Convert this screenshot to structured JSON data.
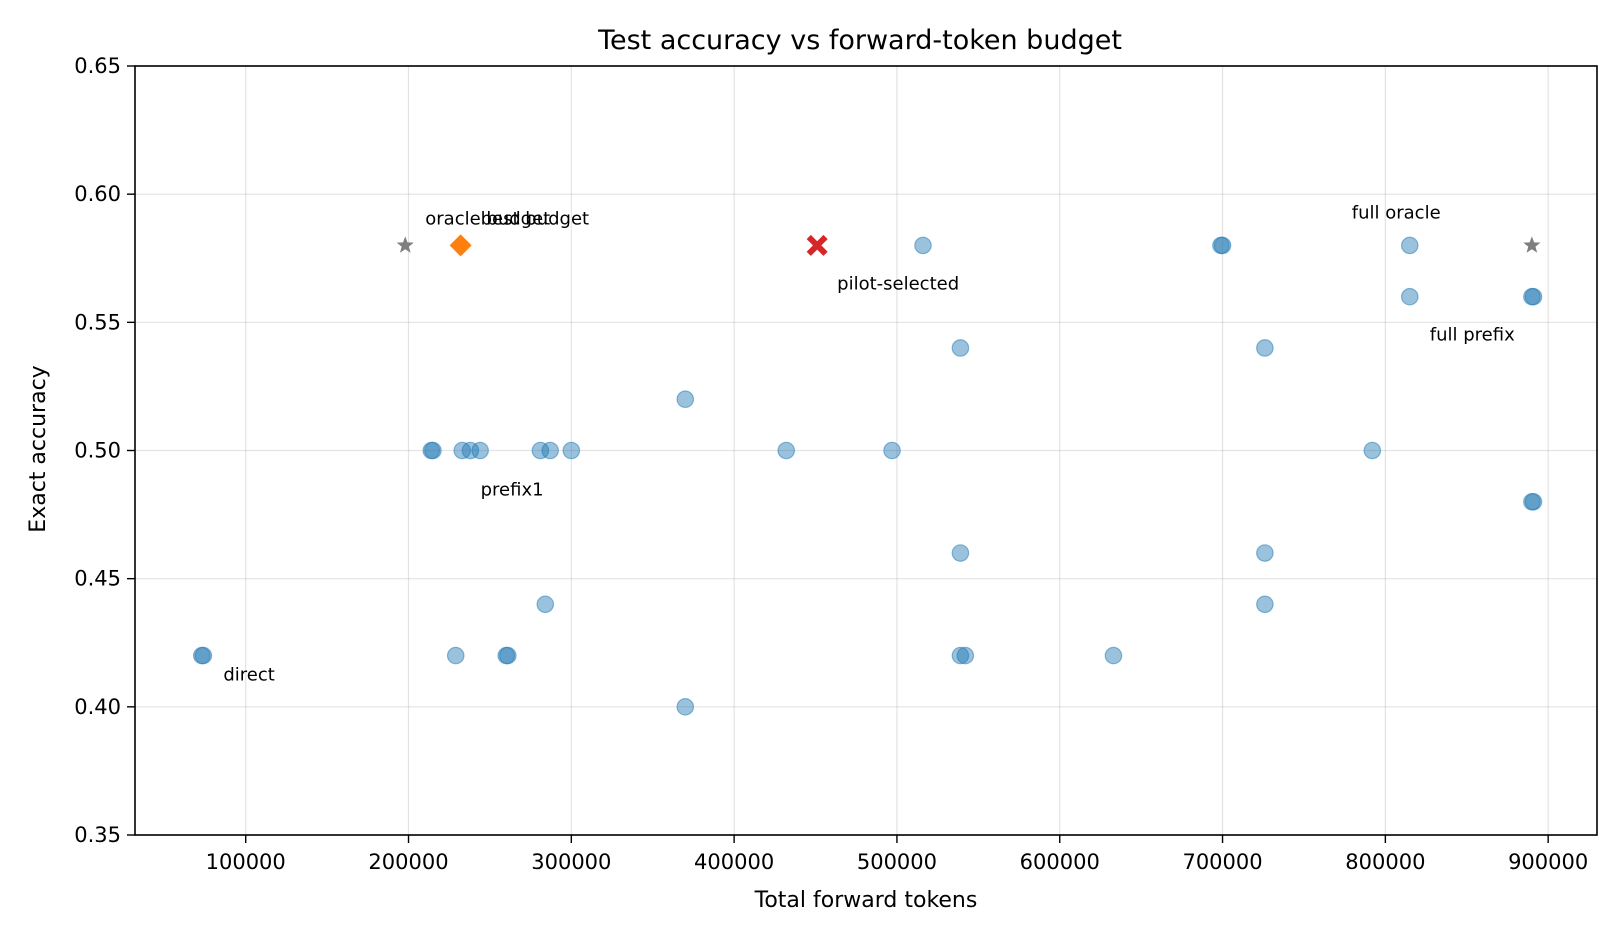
{
  "chart_data": {
    "type": "scatter",
    "title": "Test accuracy vs forward-token budget",
    "xlabel": "Total forward tokens",
    "ylabel": "Exact accuracy",
    "xlim": [
      32000,
      930000
    ],
    "ylim": [
      0.35,
      0.65
    ],
    "xticks": [
      100000,
      200000,
      300000,
      400000,
      500000,
      600000,
      700000,
      800000,
      900000
    ],
    "xtick_labels": [
      "100000",
      "200000",
      "300000",
      "400000",
      "500000",
      "600000",
      "700000",
      "800000",
      "900000"
    ],
    "yticks": [
      0.35,
      0.4,
      0.45,
      0.5,
      0.55,
      0.6,
      0.65
    ],
    "ytick_labels": [
      "0.35",
      "0.40",
      "0.45",
      "0.50",
      "0.55",
      "0.60",
      "0.65"
    ],
    "grid": true,
    "legend": "none",
    "colors": {
      "points": "#1f77b4",
      "best_budget": "#ff7f0e",
      "pilot_selected": "#d62728",
      "oracle": "#7f7f7f"
    },
    "series": [
      {
        "marker": "circle",
        "points": [
          {
            "x": 73000,
            "y": 0.42
          },
          {
            "x": 74000,
            "y": 0.42
          },
          {
            "x": 214000,
            "y": 0.5
          },
          {
            "x": 215000,
            "y": 0.5
          },
          {
            "x": 229000,
            "y": 0.42
          },
          {
            "x": 233000,
            "y": 0.5
          },
          {
            "x": 238000,
            "y": 0.5
          },
          {
            "x": 244000,
            "y": 0.5
          },
          {
            "x": 260000,
            "y": 0.42
          },
          {
            "x": 261000,
            "y": 0.42
          },
          {
            "x": 281000,
            "y": 0.5
          },
          {
            "x": 284000,
            "y": 0.44
          },
          {
            "x": 287000,
            "y": 0.5
          },
          {
            "x": 300000,
            "y": 0.5
          },
          {
            "x": 370000,
            "y": 0.52
          },
          {
            "x": 370000,
            "y": 0.4
          },
          {
            "x": 432000,
            "y": 0.5
          },
          {
            "x": 497000,
            "y": 0.5
          },
          {
            "x": 516000,
            "y": 0.58
          },
          {
            "x": 539000,
            "y": 0.54
          },
          {
            "x": 539000,
            "y": 0.46
          },
          {
            "x": 539000,
            "y": 0.42
          },
          {
            "x": 542000,
            "y": 0.42
          },
          {
            "x": 633000,
            "y": 0.42
          },
          {
            "x": 699000,
            "y": 0.58
          },
          {
            "x": 700000,
            "y": 0.58
          },
          {
            "x": 726000,
            "y": 0.54
          },
          {
            "x": 726000,
            "y": 0.46
          },
          {
            "x": 726000,
            "y": 0.44
          },
          {
            "x": 792000,
            "y": 0.5
          },
          {
            "x": 815000,
            "y": 0.58
          },
          {
            "x": 815000,
            "y": 0.56
          },
          {
            "x": 890000,
            "y": 0.56
          },
          {
            "x": 891000,
            "y": 0.56
          },
          {
            "x": 890000,
            "y": 0.48
          },
          {
            "x": 891000,
            "y": 0.48
          }
        ]
      },
      {
        "name": "best budget",
        "marker": "diamond",
        "points": [
          {
            "x": 232000,
            "y": 0.58
          }
        ]
      },
      {
        "name": "pilot-selected",
        "marker": "x",
        "points": [
          {
            "x": 451000,
            "y": 0.58
          }
        ]
      },
      {
        "marker": "star",
        "points": [
          {
            "x": 198000,
            "y": 0.58
          },
          {
            "x": 890000,
            "y": 0.58
          }
        ]
      }
    ],
    "annotations": [
      {
        "text": "oracle budget",
        "x": 198000,
        "y": 0.58,
        "anchor": "above-right"
      },
      {
        "text": "best budget",
        "x": 232000,
        "y": 0.58,
        "anchor": "above-right"
      },
      {
        "text": "pilot-selected",
        "x": 451000,
        "y": 0.58,
        "anchor": "below-right"
      },
      {
        "text": "full oracle",
        "x": 815000,
        "y": 0.58,
        "anchor": "above-left"
      },
      {
        "text": "full prefix",
        "x": 815000,
        "y": 0.56,
        "anchor": "below-right"
      },
      {
        "text": "prefix1",
        "x": 232000,
        "y": 0.5,
        "anchor": "below-right"
      },
      {
        "text": "direct",
        "x": 74000,
        "y": 0.42,
        "anchor": "below-right"
      }
    ]
  }
}
